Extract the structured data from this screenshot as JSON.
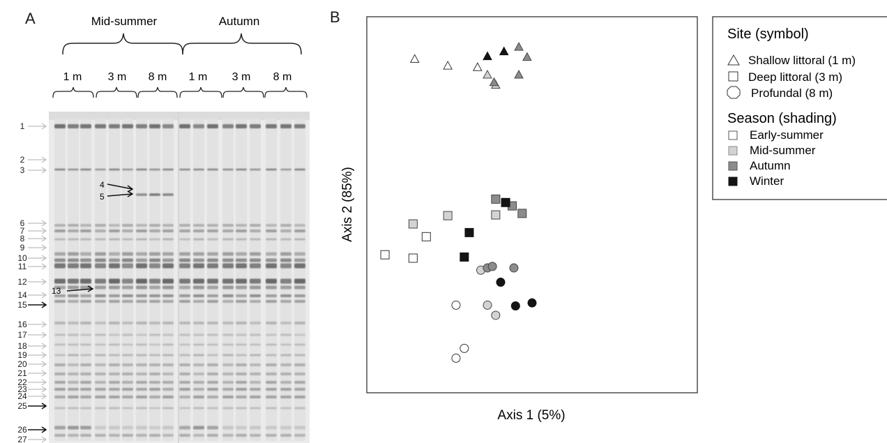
{
  "panel_a": {
    "letter": "A",
    "seasons": [
      "Mid-summer",
      "Autumn"
    ],
    "depths": [
      "1 m",
      "3 m",
      "8 m",
      "1 m",
      "3 m",
      "8 m"
    ],
    "bands": [
      {
        "label": "1",
        "arrow": "grey"
      },
      {
        "label": "2",
        "arrow": "grey"
      },
      {
        "label": "3",
        "arrow": "grey"
      },
      {
        "label": "6",
        "arrow": "grey"
      },
      {
        "label": "7",
        "arrow": "grey"
      },
      {
        "label": "8",
        "arrow": "grey"
      },
      {
        "label": "9",
        "arrow": "grey"
      },
      {
        "label": "10",
        "arrow": "grey"
      },
      {
        "label": "11",
        "arrow": "grey"
      },
      {
        "label": "12",
        "arrow": "grey"
      },
      {
        "label": "14",
        "arrow": "grey"
      },
      {
        "label": "15",
        "arrow": "black"
      },
      {
        "label": "16",
        "arrow": "grey"
      },
      {
        "label": "17",
        "arrow": "grey"
      },
      {
        "label": "18",
        "arrow": "grey"
      },
      {
        "label": "19",
        "arrow": "grey"
      },
      {
        "label": "20",
        "arrow": "grey"
      },
      {
        "label": "21",
        "arrow": "grey"
      },
      {
        "label": "22",
        "arrow": "grey"
      },
      {
        "label": "23",
        "arrow": "grey"
      },
      {
        "label": "24",
        "arrow": "grey"
      },
      {
        "label": "25",
        "arrow": "black"
      },
      {
        "label": "26",
        "arrow": "black"
      },
      {
        "label": "27",
        "arrow": "grey"
      }
    ],
    "inner_labels": [
      "4",
      "5",
      "13"
    ]
  },
  "chart_data": {
    "type": "scatter",
    "panel_letter": "B",
    "xlabel": "Axis 1 (5%)",
    "ylabel": "Axis 2 (85%)",
    "grid": false,
    "legend_position": "right",
    "legend": {
      "site_title": "Site (symbol)",
      "sites": [
        {
          "key": "shallow",
          "label": "Shallow littoral (1 m)",
          "marker": "triangle"
        },
        {
          "key": "deep",
          "label": "Deep littoral (3 m)",
          "marker": "square"
        },
        {
          "key": "profundal",
          "label": "Profundal (8 m)",
          "marker": "circle"
        }
      ],
      "season_title": "Season (shading)",
      "seasons": [
        {
          "key": "early",
          "label": "Early-summer",
          "color": "#ffffff"
        },
        {
          "key": "mid",
          "label": "Mid-summer",
          "color": "#d3d3d3"
        },
        {
          "key": "autumn",
          "label": "Autumn",
          "color": "#8c8c8c"
        },
        {
          "key": "winter",
          "label": "Winter",
          "color": "#141414"
        }
      ]
    },
    "xlim": [
      0,
      100
    ],
    "ylim": [
      0,
      100
    ],
    "points": [
      {
        "x": 14.5,
        "y": 88.8,
        "site": "shallow",
        "season": "early"
      },
      {
        "x": 24.5,
        "y": 87.0,
        "site": "shallow",
        "season": "early"
      },
      {
        "x": 33.5,
        "y": 86.6,
        "site": "shallow",
        "season": "early"
      },
      {
        "x": 36.5,
        "y": 84.6,
        "site": "shallow",
        "season": "mid"
      },
      {
        "x": 39.0,
        "y": 81.9,
        "site": "shallow",
        "season": "mid"
      },
      {
        "x": 38.5,
        "y": 82.6,
        "site": "shallow",
        "season": "autumn"
      },
      {
        "x": 46.0,
        "y": 92.0,
        "site": "shallow",
        "season": "autumn"
      },
      {
        "x": 48.5,
        "y": 89.3,
        "site": "shallow",
        "season": "autumn"
      },
      {
        "x": 46.0,
        "y": 84.6,
        "site": "shallow",
        "season": "autumn"
      },
      {
        "x": 36.5,
        "y": 89.5,
        "site": "shallow",
        "season": "winter"
      },
      {
        "x": 41.5,
        "y": 90.8,
        "site": "shallow",
        "season": "winter"
      },
      {
        "x": 5.5,
        "y": 36.7,
        "site": "deep",
        "season": "early"
      },
      {
        "x": 18.0,
        "y": 41.5,
        "site": "deep",
        "season": "early"
      },
      {
        "x": 14.0,
        "y": 35.8,
        "site": "deep",
        "season": "early"
      },
      {
        "x": 14.0,
        "y": 44.9,
        "site": "deep",
        "season": "mid"
      },
      {
        "x": 24.5,
        "y": 47.1,
        "site": "deep",
        "season": "mid"
      },
      {
        "x": 39.0,
        "y": 47.3,
        "site": "deep",
        "season": "mid"
      },
      {
        "x": 39.0,
        "y": 51.5,
        "site": "deep",
        "season": "autumn"
      },
      {
        "x": 44.0,
        "y": 49.7,
        "site": "deep",
        "season": "autumn"
      },
      {
        "x": 47.0,
        "y": 47.7,
        "site": "deep",
        "season": "autumn"
      },
      {
        "x": 42.0,
        "y": 50.6,
        "site": "deep",
        "season": "winter"
      },
      {
        "x": 31.0,
        "y": 42.6,
        "site": "deep",
        "season": "winter"
      },
      {
        "x": 29.5,
        "y": 36.1,
        "site": "deep",
        "season": "winter"
      },
      {
        "x": 27.0,
        "y": 23.3,
        "site": "profundal",
        "season": "early"
      },
      {
        "x": 29.5,
        "y": 11.8,
        "site": "profundal",
        "season": "early"
      },
      {
        "x": 27.0,
        "y": 9.2,
        "site": "profundal",
        "season": "early"
      },
      {
        "x": 34.5,
        "y": 32.6,
        "site": "profundal",
        "season": "mid"
      },
      {
        "x": 36.5,
        "y": 23.3,
        "site": "profundal",
        "season": "mid"
      },
      {
        "x": 39.0,
        "y": 20.6,
        "site": "profundal",
        "season": "mid"
      },
      {
        "x": 36.5,
        "y": 33.2,
        "site": "profundal",
        "season": "autumn"
      },
      {
        "x": 38.0,
        "y": 33.6,
        "site": "profundal",
        "season": "autumn"
      },
      {
        "x": 44.5,
        "y": 33.2,
        "site": "profundal",
        "season": "autumn"
      },
      {
        "x": 40.5,
        "y": 29.4,
        "site": "profundal",
        "season": "winter"
      },
      {
        "x": 45.0,
        "y": 23.1,
        "site": "profundal",
        "season": "winter"
      },
      {
        "x": 50.0,
        "y": 23.9,
        "site": "profundal",
        "season": "winter"
      }
    ]
  }
}
